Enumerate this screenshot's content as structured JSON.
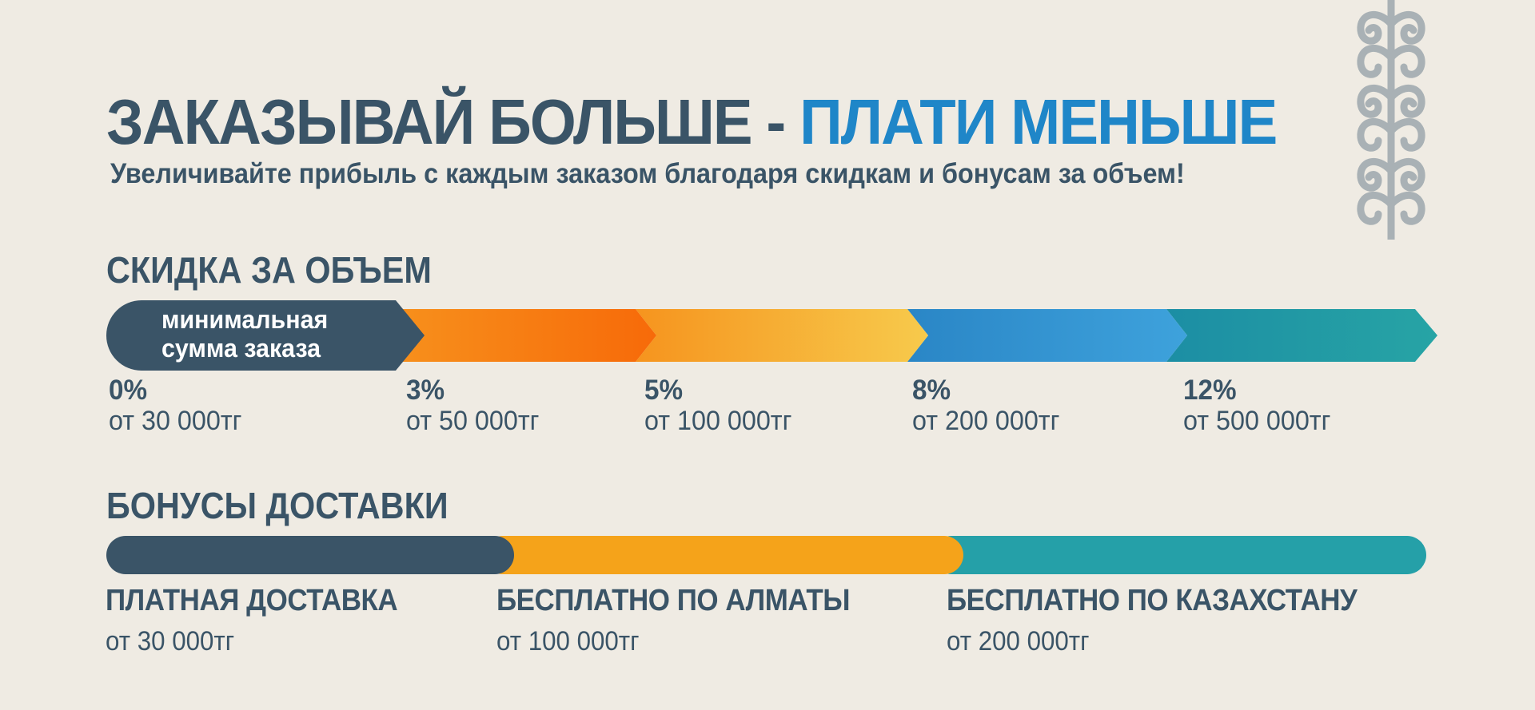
{
  "header": {
    "title_main": "ЗАКАЗЫВАЙ БОЛЬШЕ - ",
    "title_accent": "ПЛАТИ МЕНЬШЕ",
    "subtitle": "Увеличивайте прибыль с каждым заказом благодаря скидкам и бонусам за объем!"
  },
  "discount": {
    "title": "СКИДКА ЗА ОБЪЕМ",
    "min_label_line1": "минимальная",
    "min_label_line2": "сумма заказа",
    "tiers": [
      {
        "percent": "0%",
        "amount": "от 30 000тг"
      },
      {
        "percent": "3%",
        "amount": "от 50 000тг"
      },
      {
        "percent": "5%",
        "amount": "от 100 000тг"
      },
      {
        "percent": "8%",
        "amount": "от 200 000тг"
      },
      {
        "percent": "12%",
        "amount": "от 500 000тг"
      }
    ]
  },
  "delivery": {
    "title": "БОНУСЫ  ДОСТАВКИ",
    "bonuses": [
      {
        "name": "ПЛАТНАЯ ДОСТАВКА",
        "amount": "от 30 000тг"
      },
      {
        "name": "БЕСПЛАТНО ПО АЛМАТЫ",
        "amount": "от 100 000тг"
      },
      {
        "name": "БЕСПЛАТНО ПО КАЗАХСТАНУ",
        "amount": "от 200 000тг"
      }
    ]
  },
  "colors": {
    "background": "#efebe3",
    "dark": "#3a5467",
    "accent_blue": "#1f86c8",
    "orange": "#f7740d",
    "amber": "#f5a31a",
    "yellow": "#f7c84a",
    "blue": "#2c8bcb",
    "teal": "#25a0a8",
    "ornament": "#a9b1b5"
  },
  "icons": {
    "ornament": "kazakh-ornament-icon"
  }
}
